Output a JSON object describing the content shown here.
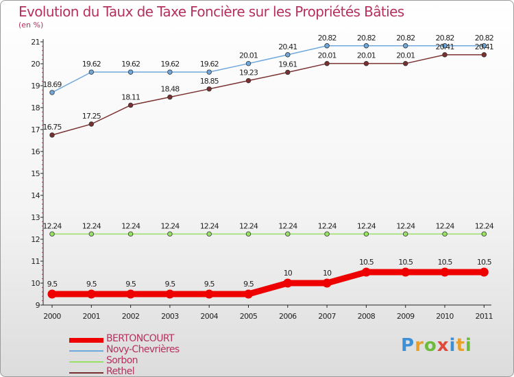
{
  "chart_data": {
    "type": "line",
    "title": "Evolution du Taux de Taxe Foncière sur les Propriétés Bâties",
    "ylabel": "(en %)",
    "xlabel": "",
    "x": [
      "2000",
      "2001",
      "2002",
      "2003",
      "2004",
      "2005",
      "2006",
      "2007",
      "2008",
      "2009",
      "2010",
      "2011"
    ],
    "ylim": [
      9,
      21
    ],
    "yticks": [
      "9",
      "10",
      "11",
      "12",
      "13",
      "14",
      "15",
      "16",
      "17",
      "18",
      "19",
      "20",
      "21"
    ],
    "series": [
      {
        "name": "BERTONCOURT",
        "color": "#ee0000",
        "values": [
          9.5,
          9.5,
          9.5,
          9.5,
          9.5,
          9.5,
          10,
          10,
          10.5,
          10.5,
          10.5,
          10.5
        ],
        "labels": [
          "9.5",
          "9.5",
          "9.5",
          "9.5",
          "9.5",
          "9.5",
          "10",
          "10",
          "10.5",
          "10.5",
          "10.5",
          "10.5"
        ]
      },
      {
        "name": "Novy-Chevrières",
        "color": "#6fa8dc",
        "values": [
          18.69,
          19.62,
          19.62,
          19.62,
          19.62,
          20.01,
          20.41,
          20.82,
          20.82,
          20.82,
          20.82,
          20.82
        ],
        "labels": [
          "18.69",
          "19.62",
          "19.62",
          "19.62",
          "19.62",
          "20.01",
          "20.41",
          "20.82",
          "20.82",
          "20.82",
          "20.82",
          "20.82"
        ]
      },
      {
        "name": "Sorbon",
        "color": "#99e066",
        "values": [
          12.24,
          12.24,
          12.24,
          12.24,
          12.24,
          12.24,
          12.24,
          12.24,
          12.24,
          12.24,
          12.24,
          12.24
        ],
        "labels": [
          "12.24",
          "12.24",
          "12.24",
          "12.24",
          "12.24",
          "12.24",
          "12.24",
          "12.24",
          "12.24",
          "12.24",
          "12.24",
          "12.24"
        ]
      },
      {
        "name": "Rethel",
        "color": "#7a3030",
        "values": [
          16.75,
          17.25,
          18.11,
          18.48,
          18.85,
          19.23,
          19.61,
          20.01,
          20.01,
          20.01,
          20.41,
          20.41
        ],
        "labels": [
          "16.75",
          "17.25",
          "18.11",
          "18.48",
          "18.85",
          "19.23",
          "19.61",
          "20.01",
          "20.01",
          "20.01",
          "20.41",
          "20.41"
        ]
      }
    ],
    "legend": "bottom-left",
    "grid": false
  },
  "logo": {
    "letters": [
      "P",
      "r",
      "o",
      "x",
      "i",
      "t",
      "i"
    ],
    "colors": [
      "#3d8fd6",
      "#e8a02a",
      "#6cbb3c",
      "#e04a3a",
      "#3d8fd6",
      "#e8a02a",
      "#6cbb3c"
    ]
  }
}
